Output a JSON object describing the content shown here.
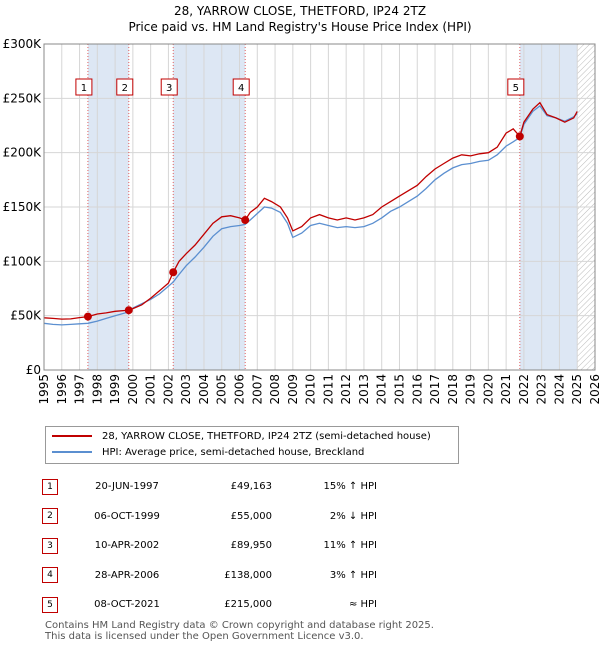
{
  "chart_data": {
    "type": "line",
    "title": "28, YARROW CLOSE, THETFORD, IP24 2TZ",
    "subtitle": "Price paid vs. HM Land Registry's House Price Index (HPI)",
    "xlim": [
      1995,
      2026
    ],
    "ylim": [
      0,
      300000
    ],
    "x_ticks": [
      "1995",
      "1996",
      "1997",
      "1998",
      "1999",
      "2000",
      "2001",
      "2002",
      "2003",
      "2004",
      "2005",
      "2006",
      "2007",
      "2008",
      "2009",
      "2010",
      "2011",
      "2012",
      "2013",
      "2014",
      "2015",
      "2016",
      "2017",
      "2018",
      "2019",
      "2020",
      "2021",
      "2022",
      "2023",
      "2024",
      "2025",
      "2026"
    ],
    "y_ticks": [
      0,
      50000,
      100000,
      150000,
      200000,
      250000,
      300000
    ],
    "y_tick_labels": [
      "£0",
      "£50K",
      "£100K",
      "£150K",
      "£200K",
      "£250K",
      "£300K"
    ],
    "data_end": 2025.0,
    "colors": {
      "property": "#c00000",
      "hpi": "#5b8fd0",
      "shade": "#dde7f4",
      "grid": "#d6d6d6",
      "vline": "#e06060"
    },
    "series": [
      {
        "name": "28, YARROW CLOSE, THETFORD, IP24 2TZ (semi-detached house)",
        "color": "#c00000",
        "points": [
          [
            1995.0,
            48000
          ],
          [
            1995.5,
            47500
          ],
          [
            1996.0,
            46800
          ],
          [
            1996.5,
            47000
          ],
          [
            1997.0,
            48200
          ],
          [
            1997.47,
            49163
          ],
          [
            1998.0,
            51500
          ],
          [
            1998.5,
            52500
          ],
          [
            1999.0,
            54000
          ],
          [
            1999.77,
            55000
          ],
          [
            2000.0,
            56500
          ],
          [
            2000.5,
            60000
          ],
          [
            2001.0,
            66000
          ],
          [
            2001.5,
            73000
          ],
          [
            2002.0,
            80000
          ],
          [
            2002.27,
            89950
          ],
          [
            2002.6,
            100000
          ],
          [
            2003.0,
            107000
          ],
          [
            2003.5,
            115000
          ],
          [
            2004.0,
            125000
          ],
          [
            2004.5,
            135000
          ],
          [
            2005.0,
            141000
          ],
          [
            2005.5,
            142000
          ],
          [
            2006.0,
            140000
          ],
          [
            2006.32,
            138000
          ],
          [
            2006.6,
            145000
          ],
          [
            2007.0,
            150000
          ],
          [
            2007.4,
            158000
          ],
          [
            2007.8,
            155000
          ],
          [
            2008.3,
            150000
          ],
          [
            2008.7,
            140000
          ],
          [
            2009.0,
            128000
          ],
          [
            2009.5,
            132000
          ],
          [
            2010.0,
            140000
          ],
          [
            2010.5,
            143000
          ],
          [
            2011.0,
            140000
          ],
          [
            2011.5,
            138000
          ],
          [
            2012.0,
            140000
          ],
          [
            2012.5,
            138000
          ],
          [
            2013.0,
            140000
          ],
          [
            2013.5,
            143000
          ],
          [
            2014.0,
            150000
          ],
          [
            2014.5,
            155000
          ],
          [
            2015.0,
            160000
          ],
          [
            2015.5,
            165000
          ],
          [
            2016.0,
            170000
          ],
          [
            2016.5,
            178000
          ],
          [
            2017.0,
            185000
          ],
          [
            2017.5,
            190000
          ],
          [
            2018.0,
            195000
          ],
          [
            2018.5,
            198000
          ],
          [
            2019.0,
            197000
          ],
          [
            2019.5,
            199000
          ],
          [
            2020.0,
            200000
          ],
          [
            2020.5,
            205000
          ],
          [
            2021.0,
            218000
          ],
          [
            2021.4,
            222000
          ],
          [
            2021.77,
            215000
          ],
          [
            2022.0,
            228000
          ],
          [
            2022.5,
            240000
          ],
          [
            2022.9,
            246000
          ],
          [
            2023.3,
            235000
          ],
          [
            2023.8,
            232000
          ],
          [
            2024.3,
            228000
          ],
          [
            2024.8,
            232000
          ],
          [
            2025.0,
            238000
          ]
        ]
      },
      {
        "name": "HPI: Average price, semi-detached house, Breckland",
        "color": "#5b8fd0",
        "points": [
          [
            1995.0,
            43000
          ],
          [
            1995.5,
            42000
          ],
          [
            1996.0,
            41500
          ],
          [
            1996.5,
            42000
          ],
          [
            1997.0,
            42500
          ],
          [
            1997.47,
            43000
          ],
          [
            1998.0,
            45000
          ],
          [
            1998.5,
            47500
          ],
          [
            1999.0,
            50000
          ],
          [
            1999.77,
            53500
          ],
          [
            2000.0,
            57000
          ],
          [
            2000.5,
            61000
          ],
          [
            2001.0,
            65000
          ],
          [
            2001.5,
            70000
          ],
          [
            2002.0,
            77000
          ],
          [
            2002.27,
            81000
          ],
          [
            2002.6,
            88000
          ],
          [
            2003.0,
            96000
          ],
          [
            2003.5,
            104000
          ],
          [
            2004.0,
            113000
          ],
          [
            2004.5,
            123000
          ],
          [
            2005.0,
            130000
          ],
          [
            2005.5,
            132000
          ],
          [
            2006.0,
            133000
          ],
          [
            2006.32,
            134000
          ],
          [
            2006.6,
            138000
          ],
          [
            2007.0,
            144000
          ],
          [
            2007.4,
            150000
          ],
          [
            2007.8,
            149000
          ],
          [
            2008.3,
            145000
          ],
          [
            2008.7,
            135000
          ],
          [
            2009.0,
            122000
          ],
          [
            2009.5,
            126000
          ],
          [
            2010.0,
            133000
          ],
          [
            2010.5,
            135000
          ],
          [
            2011.0,
            133000
          ],
          [
            2011.5,
            131000
          ],
          [
            2012.0,
            132000
          ],
          [
            2012.5,
            131000
          ],
          [
            2013.0,
            132000
          ],
          [
            2013.5,
            135000
          ],
          [
            2014.0,
            140000
          ],
          [
            2014.5,
            146000
          ],
          [
            2015.0,
            150000
          ],
          [
            2015.5,
            155000
          ],
          [
            2016.0,
            160000
          ],
          [
            2016.5,
            167000
          ],
          [
            2017.0,
            175000
          ],
          [
            2017.5,
            181000
          ],
          [
            2018.0,
            186000
          ],
          [
            2018.5,
            189000
          ],
          [
            2019.0,
            190000
          ],
          [
            2019.5,
            192000
          ],
          [
            2020.0,
            193000
          ],
          [
            2020.5,
            198000
          ],
          [
            2021.0,
            206000
          ],
          [
            2021.4,
            210000
          ],
          [
            2021.77,
            214000
          ],
          [
            2022.0,
            226000
          ],
          [
            2022.5,
            238000
          ],
          [
            2022.9,
            243000
          ],
          [
            2023.3,
            234000
          ],
          [
            2023.8,
            232000
          ],
          [
            2024.3,
            229000
          ],
          [
            2024.8,
            233000
          ],
          [
            2025.0,
            236000
          ]
        ]
      }
    ],
    "sales": [
      {
        "num": "1",
        "x": 1997.47,
        "price": 49163
      },
      {
        "num": "2",
        "x": 1999.77,
        "price": 55000
      },
      {
        "num": "3",
        "x": 2002.27,
        "price": 89950
      },
      {
        "num": "4",
        "x": 2006.32,
        "price": 138000
      },
      {
        "num": "5",
        "x": 2021.77,
        "price": 215000
      }
    ],
    "shaded_ranges": [
      [
        1997.47,
        1999.77
      ],
      [
        2002.27,
        2006.32
      ],
      [
        2021.77,
        2025.0
      ]
    ],
    "legend": [
      {
        "label": "28, YARROW CLOSE, THETFORD, IP24 2TZ (semi-detached house)",
        "color": "#c00000"
      },
      {
        "label": "HPI: Average price, semi-detached house, Breckland",
        "color": "#5b8fd0"
      }
    ]
  },
  "table": [
    {
      "num": "1",
      "date": "20-JUN-1997",
      "price": "£49,163",
      "hpi": "15% ↑ HPI"
    },
    {
      "num": "2",
      "date": "06-OCT-1999",
      "price": "£55,000",
      "hpi": "2% ↓ HPI"
    },
    {
      "num": "3",
      "date": "10-APR-2002",
      "price": "£89,950",
      "hpi": "11% ↑ HPI"
    },
    {
      "num": "4",
      "date": "28-APR-2006",
      "price": "£138,000",
      "hpi": "3% ↑ HPI"
    },
    {
      "num": "5",
      "date": "08-OCT-2021",
      "price": "£215,000",
      "hpi": "≈ HPI"
    }
  ],
  "footer": {
    "line1": "Contains HM Land Registry data © Crown copyright and database right 2025.",
    "line2": "This data is licensed under the Open Government Licence v3.0."
  }
}
